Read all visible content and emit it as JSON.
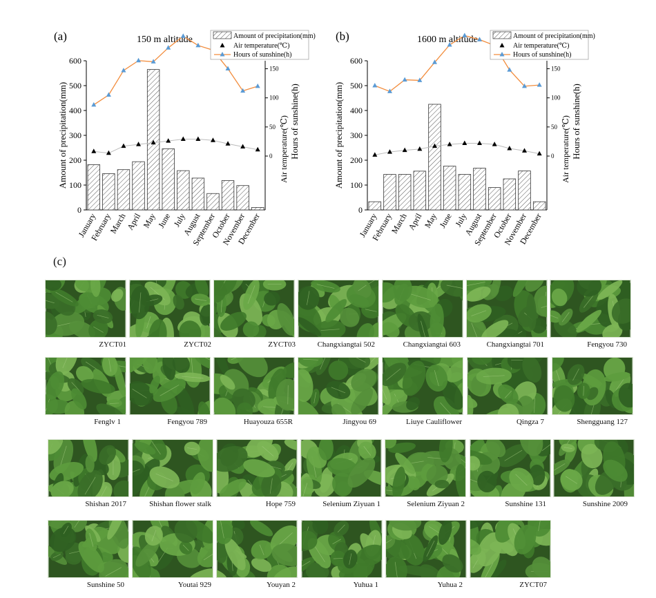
{
  "panel_c_label": "(c)",
  "chart_data": [
    {
      "type": "bar+line",
      "panel": "(a)",
      "title": "150 m altitude",
      "categories": [
        "January",
        "February",
        "March",
        "April",
        "May",
        "June",
        "July",
        "August",
        "September",
        "October",
        "November",
        "December"
      ],
      "ylabel": "Amount of precipitation(mm)",
      "ylim": [
        0,
        600
      ],
      "yticks": [
        0,
        100,
        200,
        300,
        400,
        500,
        600
      ],
      "y2label": "Hours of sunshine(h)",
      "y3label": "Air temperature(℃)",
      "y2ticks": [
        0,
        50,
        100,
        150,
        200
      ],
      "legend_position": "top-right",
      "series": [
        {
          "name": "Amount of precipitation(mm)",
          "type": "bar",
          "axis": "left",
          "values": [
            182,
            146,
            162,
            194,
            565,
            246,
            158,
            128,
            66,
            118,
            98,
            10
          ]
        },
        {
          "name": "Air temperature(℃)",
          "type": "scatter",
          "axis": "right",
          "color": "#000000",
          "values": [
            8,
            5,
            17,
            20,
            23,
            26,
            29,
            29,
            27,
            21,
            16,
            11
          ]
        },
        {
          "name": "Hours of sunshine(h)",
          "type": "line",
          "axis": "right",
          "color": "#f28c3c",
          "marker_color": "#5b9bd5",
          "values": [
            88,
            105,
            147,
            164,
            162,
            186,
            206,
            190,
            182,
            150,
            112,
            120
          ]
        }
      ]
    },
    {
      "type": "bar+line",
      "panel": "(b)",
      "title": "1600 m altitude",
      "categories": [
        "January",
        "February",
        "March",
        "April",
        "May",
        "June",
        "July",
        "August",
        "September",
        "October",
        "November",
        "December"
      ],
      "ylabel": "Amount of precipitation(mm)",
      "ylim": [
        0,
        600
      ],
      "yticks": [
        0,
        100,
        200,
        300,
        400,
        500,
        600
      ],
      "y2label": "Hours of sunshine(h)",
      "y3label": "Air temperature(℃)",
      "y2ticks": [
        0,
        50,
        100,
        150,
        200
      ],
      "legend_position": "top-right",
      "series": [
        {
          "name": "Amount of precipitation(mm)",
          "type": "bar",
          "axis": "left",
          "values": [
            33,
            143,
            143,
            156,
            425,
            176,
            143,
            168,
            90,
            125,
            157,
            33
          ]
        },
        {
          "name": "Air temperature(℃)",
          "type": "scatter",
          "axis": "right",
          "color": "#000000",
          "values": [
            2,
            7,
            10,
            12,
            17,
            20,
            22,
            22,
            20,
            13,
            9,
            4
          ]
        },
        {
          "name": "Hours of sunshine(h)",
          "type": "line",
          "axis": "right",
          "color": "#f28c3c",
          "marker_color": "#5b9bd5",
          "values": [
            121,
            111,
            131,
            130,
            161,
            191,
            207,
            200,
            190,
            148,
            120,
            122
          ]
        }
      ]
    }
  ],
  "photos": [
    [
      "ZYCT01",
      "ZYCT02",
      "ZYCT03",
      "Changxiangtai 502",
      "Changxiangtai 603",
      "Changxiangtai 701",
      "Fengyou 730"
    ],
    [
      "Fenglv 1",
      "Fengyou 789",
      "Huayouza 655R",
      "Jingyou 69",
      "Liuye Cauliflower",
      "Qingza 7",
      "Shengguang 127"
    ],
    [
      "Shishan 2017",
      "Shishan flower stalk",
      "Hope 759",
      "Selenium Ziyuan 1",
      "Selenium Ziyuan 2",
      "Sunshine 131",
      "Sunshine 2009"
    ],
    [
      "Sunshine 50",
      "Youtai 929",
      "Youyan 2",
      "Yuhua 1",
      "Yuhua 2",
      "ZYCT07"
    ]
  ]
}
